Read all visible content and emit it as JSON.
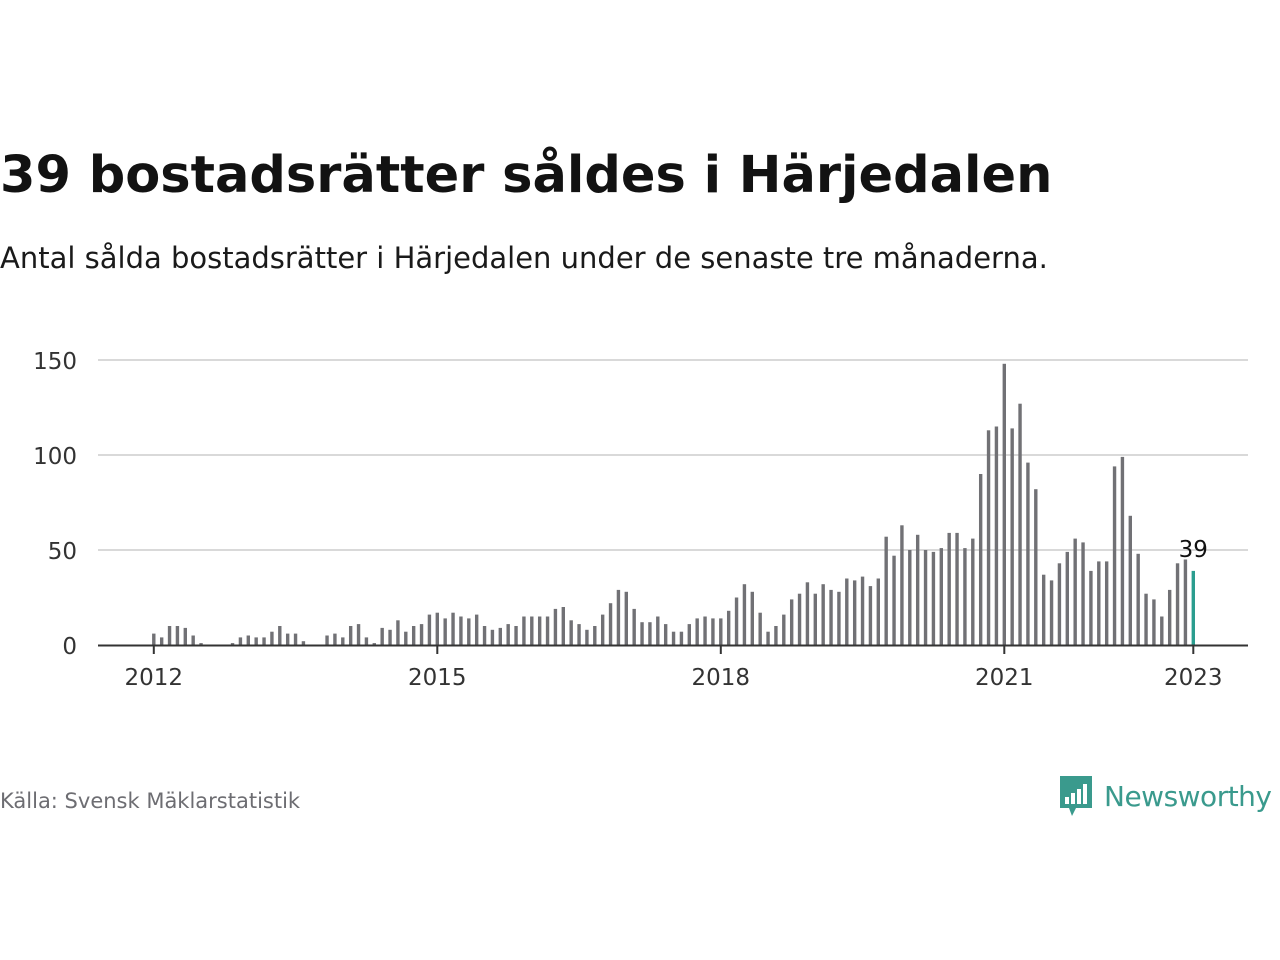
{
  "header": {
    "title": "39 bostadsrätter såldes i Härjedalen",
    "subtitle": "Antal sålda bostadsrätter i Härjedalen under de senaste tre månaderna."
  },
  "footer": {
    "source": "Källa: Svensk Mäklarstatistik",
    "brand": "Newsworthy"
  },
  "colors": {
    "bar": "#717175",
    "highlight": "#2a9d8f",
    "grid": "#d9d9d9",
    "axis": "#333333",
    "brand": "#3a9a8d"
  },
  "chart_data": {
    "type": "bar",
    "start": "2012-01",
    "ylim": [
      0,
      150
    ],
    "yticks": [
      0,
      50,
      100,
      150
    ],
    "xticks": [
      {
        "label": "2012",
        "index": 0
      },
      {
        "label": "2015",
        "index": 36
      },
      {
        "label": "2018",
        "index": 72
      },
      {
        "label": "2021",
        "index": 108
      },
      {
        "label": "2023",
        "index": 132
      }
    ],
    "highlight_index": 132,
    "highlight_label": "39",
    "values": [
      6,
      4,
      10,
      10,
      9,
      5,
      1,
      0,
      0,
      0,
      1,
      4,
      5,
      4,
      4,
      7,
      10,
      6,
      6,
      2,
      0,
      0,
      5,
      6,
      4,
      10,
      11,
      4,
      1,
      9,
      8,
      13,
      7,
      10,
      11,
      16,
      17,
      14,
      17,
      15,
      14,
      16,
      10,
      8,
      9,
      11,
      10,
      15,
      15,
      15,
      15,
      19,
      20,
      13,
      11,
      8,
      10,
      16,
      22,
      29,
      28,
      19,
      12,
      12,
      15,
      11,
      7,
      7,
      11,
      14,
      15,
      14,
      14,
      18,
      25,
      32,
      28,
      17,
      7,
      10,
      16,
      24,
      27,
      33,
      27,
      32,
      29,
      28,
      35,
      34,
      36,
      31,
      35,
      57,
      47,
      63,
      50,
      58,
      50,
      49,
      51,
      59,
      59,
      51,
      56,
      90,
      113,
      115,
      148,
      114,
      127,
      96,
      82,
      37,
      34,
      43,
      49,
      56,
      54,
      39,
      44,
      44,
      94,
      99,
      68,
      48,
      27,
      24,
      15,
      29,
      43,
      45,
      39
    ]
  }
}
